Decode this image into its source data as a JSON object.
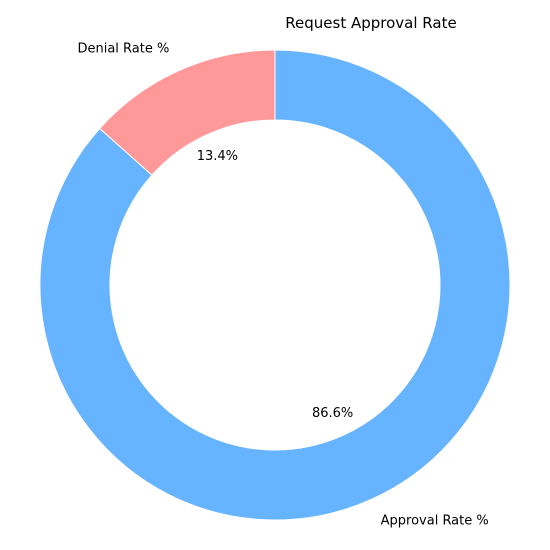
{
  "chart_data": {
    "type": "pie",
    "style": "donut",
    "title": "Request Approval Rate",
    "start_angle_deg": 90,
    "direction": "clockwise",
    "slices": [
      {
        "label": "Approval Rate %",
        "value": 86.6,
        "pct_label": "86.6%",
        "color": "#66b3ff"
      },
      {
        "label": "Denial Rate %",
        "value": 13.4,
        "pct_label": "13.4%",
        "color": "#ff9999"
      }
    ]
  }
}
